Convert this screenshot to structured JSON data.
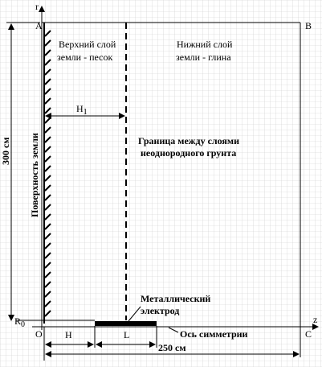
{
  "labels": {
    "axis_r": "r",
    "axis_z": "z",
    "point_A": "A",
    "point_B": "B",
    "point_C": "C",
    "point_O": "O",
    "top_layer_line1": "Верхний слой",
    "top_layer_line2": "земли - песок",
    "bottom_layer_line1": "Нижний слой",
    "bottom_layer_line2": "земли - глина",
    "h1": "H",
    "h1_sub": "1",
    "boundary_line1": "Граница между слоями",
    "boundary_line2": "неоднородного грунта",
    "surface": "Поверхность земли",
    "height": "300 см",
    "electrode_line1": "Металлический",
    "electrode_line2": "электрод",
    "r0": "R",
    "r0_sub": "0",
    "h": "H",
    "l": "L",
    "symmetry_axis": "Ось симметрии",
    "width": "250 см"
  }
}
